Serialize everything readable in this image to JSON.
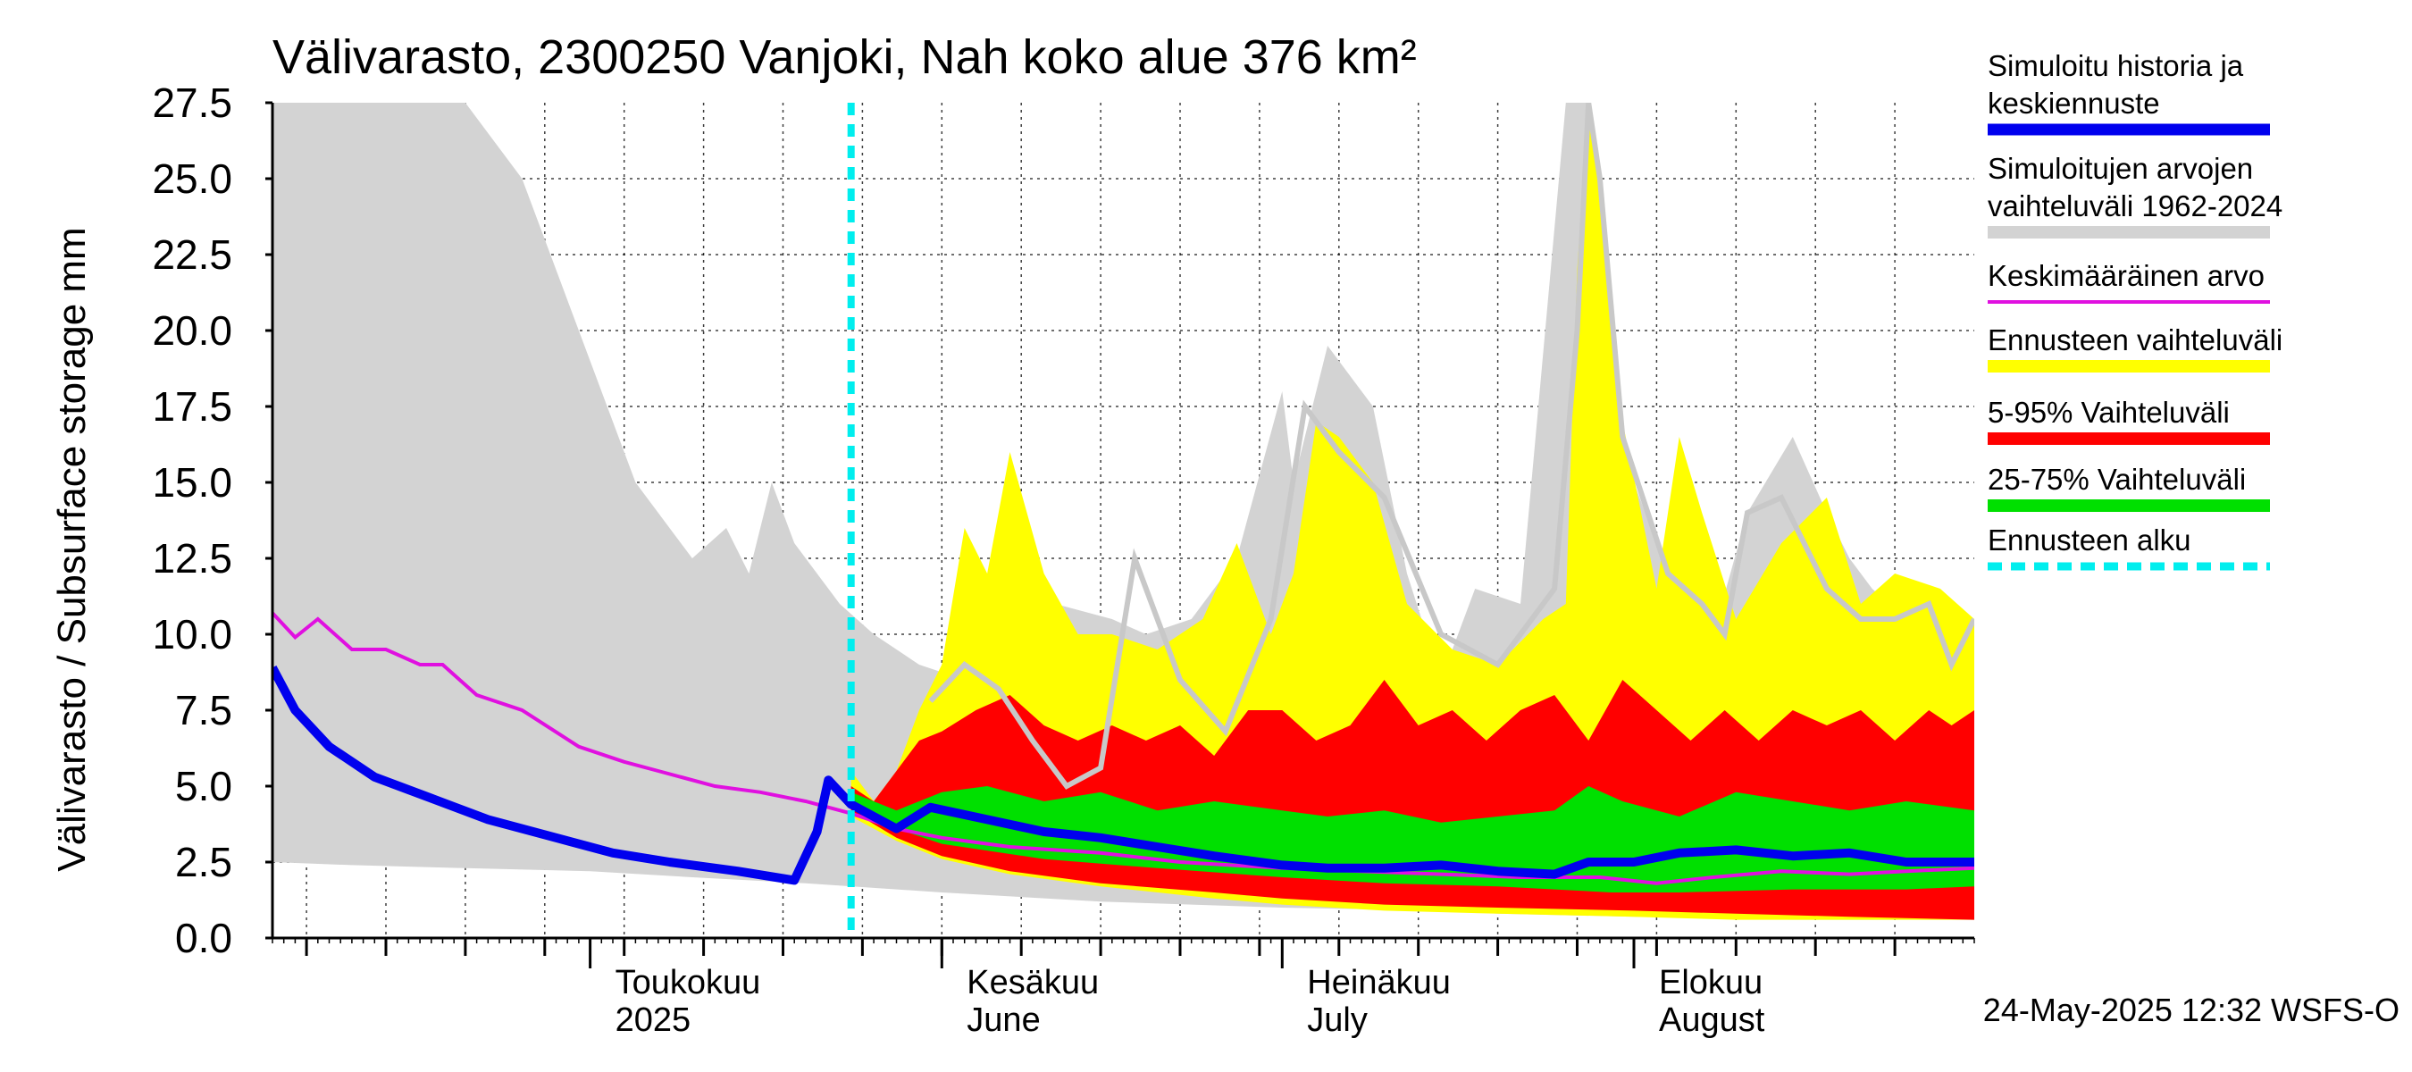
{
  "chart_data": {
    "type": "area",
    "title": "Välivarasto, 2300250 Vanjoki, Nah koko alue 376 km²",
    "ylabel": "Välivarasto / Subsurface storage  mm",
    "ylim": [
      0,
      27.5
    ],
    "xlim": [
      "2025-04-03",
      "2025-08-31"
    ],
    "y_ticks": [
      "0.0",
      "2.5",
      "5.0",
      "7.5",
      "10.0",
      "12.5",
      "15.0",
      "17.5",
      "20.0",
      "22.5",
      "25.0",
      "27.5"
    ],
    "month_labels": [
      {
        "date": "2025-05-01",
        "line1": "Toukokuu",
        "line2": "2025"
      },
      {
        "date": "2025-06-01",
        "line1": "Kesäkuu",
        "line2": "June"
      },
      {
        "date": "2025-07-01",
        "line1": "Heinäkuu",
        "line2": "July"
      },
      {
        "date": "2025-08-01",
        "line1": "Elokuu",
        "line2": "August"
      }
    ],
    "forecast_start": "2025-05-24",
    "grid": true,
    "legend_position": "right",
    "footer": "24-May-2025 12:32 WSFS-O",
    "colors": {
      "history": "#0000ee",
      "range": "#d3d3d3",
      "mean": "#e010e0",
      "forecast_range": "#ffff00",
      "p5_95": "#ff0000",
      "p25_75": "#00e000",
      "forecast_start": "#00eeee",
      "gray_line": "#c8c8c8"
    },
    "legend": [
      {
        "key": "history",
        "lines": [
          "Simuloitu historia ja",
          "keskiennuste"
        ]
      },
      {
        "key": "range",
        "lines": [
          "Simuloitujen arvojen",
          "vaihteluväli 1962-2024"
        ]
      },
      {
        "key": "mean",
        "lines": [
          "Keskimääräinen arvo"
        ]
      },
      {
        "key": "forecast_range",
        "lines": [
          "Ennusteen vaihteluväli"
        ]
      },
      {
        "key": "p5_95",
        "lines": [
          "5-95% Vaihteluväli"
        ]
      },
      {
        "key": "p25_75",
        "lines": [
          "25-75% Vaihteluväli"
        ]
      },
      {
        "key": "forecast_start",
        "lines": [
          "Ennusteen alku"
        ]
      }
    ],
    "series": {
      "range_upper": {
        "dates": [
          "2025-04-03",
          "2025-04-12",
          "2025-04-16",
          "2025-04-20",
          "2025-04-25",
          "2025-04-30",
          "2025-05-05",
          "2025-05-10",
          "2025-05-13",
          "2025-05-15",
          "2025-05-17",
          "2025-05-19",
          "2025-05-21",
          "2025-05-23",
          "2025-05-26",
          "2025-05-30",
          "2025-06-03",
          "2025-06-08",
          "2025-06-11",
          "2025-06-16",
          "2025-06-19",
          "2025-06-23",
          "2025-06-27",
          "2025-07-01",
          "2025-07-02",
          "2025-07-05",
          "2025-07-09",
          "2025-07-12",
          "2025-07-15",
          "2025-07-18",
          "2025-07-22",
          "2025-07-26",
          "2025-07-28",
          "2025-07-31",
          "2025-08-04",
          "2025-08-08",
          "2025-08-11",
          "2025-08-15",
          "2025-08-18",
          "2025-08-20",
          "2025-08-22",
          "2025-08-25",
          "2025-08-28",
          "2025-08-31"
        ],
        "values": [
          27.5,
          27.5,
          27.5,
          27.5,
          25.0,
          20.0,
          15.0,
          12.5,
          13.5,
          12.0,
          15.0,
          13.0,
          12.0,
          11.0,
          10.0,
          9.0,
          8.5,
          10.0,
          11.0,
          10.5,
          10.0,
          10.5,
          12.5,
          18.0,
          15.0,
          19.5,
          17.5,
          12.0,
          8.5,
          11.5,
          11.0,
          27.5,
          27.5,
          16.0,
          12.0,
          10.0,
          14.0,
          16.5,
          14.0,
          12.5,
          11.5,
          10.5,
          10.0,
          10.0
        ]
      },
      "range_lower": {
        "dates": [
          "2025-04-03",
          "2025-04-10",
          "2025-04-20",
          "2025-05-01",
          "2025-05-10",
          "2025-05-20",
          "2025-06-01",
          "2025-06-15",
          "2025-07-01",
          "2025-07-15",
          "2025-07-20",
          "2025-08-01",
          "2025-08-15",
          "2025-08-31"
        ],
        "values": [
          2.5,
          2.4,
          2.3,
          2.2,
          2.0,
          1.8,
          1.5,
          1.2,
          1.0,
          0.9,
          0.8,
          0.7,
          0.6,
          0.6
        ]
      },
      "forecast_upper": {
        "dates": [
          "2025-05-24",
          "2025-05-26",
          "2025-05-28",
          "2025-05-30",
          "2025-06-01",
          "2025-06-03",
          "2025-06-05",
          "2025-06-07",
          "2025-06-10",
          "2025-06-13",
          "2025-06-16",
          "2025-06-20",
          "2025-06-24",
          "2025-06-27",
          "2025-06-30",
          "2025-07-02",
          "2025-07-04",
          "2025-07-06",
          "2025-07-09",
          "2025-07-12",
          "2025-07-16",
          "2025-07-20",
          "2025-07-24",
          "2025-07-26",
          "2025-07-27",
          "2025-07-28",
          "2025-07-29",
          "2025-07-31",
          "2025-08-03",
          "2025-08-05",
          "2025-08-07",
          "2025-08-10",
          "2025-08-14",
          "2025-08-18",
          "2025-08-21",
          "2025-08-24",
          "2025-08-28",
          "2025-08-31"
        ],
        "values": [
          5.5,
          4.5,
          5.5,
          7.5,
          9.0,
          13.5,
          12.0,
          16.0,
          12.0,
          10.0,
          10.0,
          9.5,
          10.5,
          13.0,
          10.0,
          12.0,
          17.0,
          16.5,
          15.0,
          11.0,
          9.5,
          9.0,
          10.5,
          11.0,
          22.0,
          27.5,
          25.0,
          17.0,
          11.5,
          16.5,
          14.0,
          10.5,
          13.0,
          14.5,
          11.0,
          12.0,
          11.5,
          10.5
        ]
      },
      "forecast_lower": {
        "dates": [
          "2025-05-24",
          "2025-05-28",
          "2025-06-01",
          "2025-06-07",
          "2025-06-15",
          "2025-06-25",
          "2025-07-01",
          "2025-07-10",
          "2025-07-20",
          "2025-08-01",
          "2025-08-10",
          "2025-08-20",
          "2025-08-31"
        ],
        "values": [
          4.0,
          3.2,
          2.6,
          2.1,
          1.7,
          1.3,
          1.1,
          0.9,
          0.8,
          0.7,
          0.6,
          0.6,
          0.6
        ]
      },
      "p95": {
        "dates": [
          "2025-05-24",
          "2025-05-26",
          "2025-05-28",
          "2025-05-30",
          "2025-06-01",
          "2025-06-04",
          "2025-06-07",
          "2025-06-10",
          "2025-06-13",
          "2025-06-16",
          "2025-06-19",
          "2025-06-22",
          "2025-06-25",
          "2025-06-28",
          "2025-07-01",
          "2025-07-04",
          "2025-07-07",
          "2025-07-10",
          "2025-07-13",
          "2025-07-16",
          "2025-07-19",
          "2025-07-22",
          "2025-07-25",
          "2025-07-28",
          "2025-07-31",
          "2025-08-03",
          "2025-08-06",
          "2025-08-09",
          "2025-08-12",
          "2025-08-15",
          "2025-08-18",
          "2025-08-21",
          "2025-08-24",
          "2025-08-27",
          "2025-08-29",
          "2025-08-31"
        ],
        "values": [
          5.0,
          4.5,
          5.5,
          6.5,
          6.8,
          7.5,
          8.0,
          7.0,
          6.5,
          7.0,
          6.5,
          7.0,
          6.0,
          7.5,
          7.5,
          6.5,
          7.0,
          8.5,
          7.0,
          7.5,
          6.5,
          7.5,
          8.0,
          6.5,
          8.5,
          7.5,
          6.5,
          7.5,
          6.5,
          7.5,
          7.0,
          7.5,
          6.5,
          7.5,
          7.0,
          7.5
        ]
      },
      "p5": {
        "dates": [
          "2025-05-24",
          "2025-05-28",
          "2025-06-01",
          "2025-06-07",
          "2025-06-15",
          "2025-06-25",
          "2025-07-01",
          "2025-07-10",
          "2025-07-20",
          "2025-08-01",
          "2025-08-10",
          "2025-08-20",
          "2025-08-31"
        ],
        "values": [
          4.2,
          3.3,
          2.7,
          2.2,
          1.8,
          1.5,
          1.3,
          1.1,
          1.0,
          0.9,
          0.8,
          0.7,
          0.6
        ]
      },
      "p75": {
        "dates": [
          "2025-05-24",
          "2025-05-28",
          "2025-06-01",
          "2025-06-05",
          "2025-06-10",
          "2025-06-15",
          "2025-06-20",
          "2025-06-25",
          "2025-07-01",
          "2025-07-05",
          "2025-07-10",
          "2025-07-15",
          "2025-07-20",
          "2025-07-25",
          "2025-07-28",
          "2025-07-31",
          "2025-08-05",
          "2025-08-10",
          "2025-08-15",
          "2025-08-20",
          "2025-08-25",
          "2025-08-31"
        ],
        "values": [
          4.8,
          4.2,
          4.8,
          5.0,
          4.5,
          4.8,
          4.2,
          4.5,
          4.2,
          4.0,
          4.2,
          3.8,
          4.0,
          4.2,
          5.0,
          4.5,
          4.0,
          4.8,
          4.5,
          4.2,
          4.5,
          4.2
        ]
      },
      "p25": {
        "dates": [
          "2025-05-24",
          "2025-05-28",
          "2025-06-01",
          "2025-06-10",
          "2025-06-20",
          "2025-07-01",
          "2025-07-10",
          "2025-07-20",
          "2025-07-25",
          "2025-07-30",
          "2025-08-05",
          "2025-08-15",
          "2025-08-25",
          "2025-08-31"
        ],
        "values": [
          4.4,
          3.6,
          3.1,
          2.6,
          2.3,
          2.0,
          1.8,
          1.7,
          1.6,
          1.5,
          1.5,
          1.6,
          1.6,
          1.7
        ]
      },
      "mean": {
        "dates": [
          "2025-04-03",
          "2025-04-05",
          "2025-04-07",
          "2025-04-10",
          "2025-04-13",
          "2025-04-16",
          "2025-04-18",
          "2025-04-21",
          "2025-04-25",
          "2025-04-30",
          "2025-05-04",
          "2025-05-07",
          "2025-05-12",
          "2025-05-16",
          "2025-05-20",
          "2025-05-24",
          "2025-05-28",
          "2025-06-01",
          "2025-06-07",
          "2025-06-15",
          "2025-06-22",
          "2025-07-01",
          "2025-07-08",
          "2025-07-15",
          "2025-07-22",
          "2025-07-29",
          "2025-08-03",
          "2025-08-08",
          "2025-08-14",
          "2025-08-20",
          "2025-08-25",
          "2025-08-31"
        ],
        "values": [
          10.7,
          9.9,
          10.5,
          9.5,
          9.5,
          9.0,
          9.0,
          8.0,
          7.5,
          6.3,
          5.8,
          5.5,
          5.0,
          4.8,
          4.5,
          4.1,
          3.6,
          3.3,
          3.0,
          2.8,
          2.5,
          2.3,
          2.2,
          2.1,
          2.0,
          2.0,
          1.8,
          2.0,
          2.2,
          2.1,
          2.2,
          2.3
        ]
      },
      "history": {
        "dates": [
          "2025-04-03",
          "2025-04-05",
          "2025-04-08",
          "2025-04-12",
          "2025-04-17",
          "2025-04-22",
          "2025-04-28",
          "2025-05-03",
          "2025-05-08",
          "2025-05-14",
          "2025-05-19",
          "2025-05-21",
          "2025-05-22",
          "2025-05-24",
          "2025-05-28",
          "2025-05-31",
          "2025-06-05",
          "2025-06-10",
          "2025-06-15",
          "2025-06-20",
          "2025-06-25",
          "2025-07-01",
          "2025-07-05",
          "2025-07-10",
          "2025-07-15",
          "2025-07-20",
          "2025-07-25",
          "2025-07-28",
          "2025-08-01",
          "2025-08-05",
          "2025-08-10",
          "2025-08-15",
          "2025-08-20",
          "2025-08-25",
          "2025-08-31"
        ],
        "values": [
          8.9,
          7.5,
          6.3,
          5.3,
          4.6,
          3.9,
          3.3,
          2.8,
          2.5,
          2.2,
          1.9,
          3.5,
          5.2,
          4.4,
          3.6,
          4.3,
          3.9,
          3.5,
          3.3,
          3.0,
          2.7,
          2.4,
          2.3,
          2.3,
          2.4,
          2.2,
          2.1,
          2.5,
          2.5,
          2.8,
          2.9,
          2.7,
          2.8,
          2.5,
          2.5
        ]
      },
      "gray_line": {
        "dates": [
          "2025-05-31",
          "2025-06-03",
          "2025-06-06",
          "2025-06-09",
          "2025-06-12",
          "2025-06-15",
          "2025-06-18",
          "2025-06-22",
          "2025-06-26",
          "2025-06-30",
          "2025-07-03",
          "2025-07-06",
          "2025-07-10",
          "2025-07-15",
          "2025-07-20",
          "2025-07-25",
          "2025-07-27",
          "2025-07-28",
          "2025-07-29",
          "2025-07-31",
          "2025-08-04",
          "2025-08-07",
          "2025-08-09",
          "2025-08-11",
          "2025-08-14",
          "2025-08-18",
          "2025-08-21",
          "2025-08-24",
          "2025-08-27",
          "2025-08-29",
          "2025-08-31"
        ],
        "values": [
          7.8,
          9.0,
          8.2,
          6.5,
          5.0,
          5.6,
          12.5,
          8.5,
          6.8,
          10.5,
          17.5,
          16.0,
          14.5,
          10.0,
          9.0,
          11.5,
          20.0,
          27.5,
          25.0,
          16.5,
          12.0,
          11.0,
          10.0,
          14.0,
          14.5,
          11.5,
          10.5,
          10.5,
          11.0,
          9.0,
          10.5
        ]
      }
    }
  }
}
